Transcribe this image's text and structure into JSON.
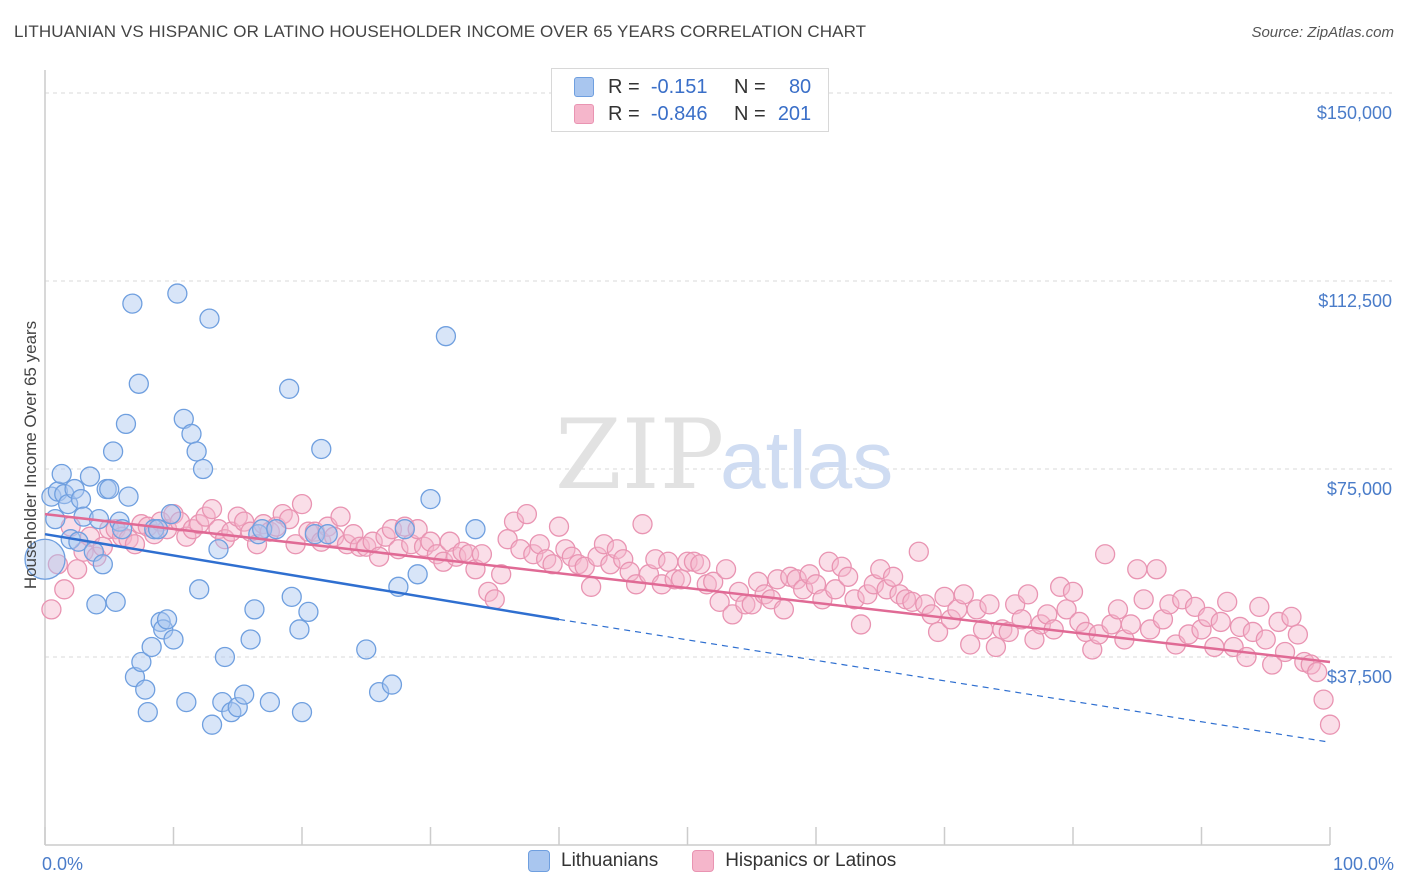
{
  "title": "LITHUANIAN VS HISPANIC OR LATINO HOUSEHOLDER INCOME OVER 65 YEARS CORRELATION CHART",
  "source": "Source: ZipAtlas.com",
  "watermark": {
    "zip": "ZIP",
    "atlas": "atlas"
  },
  "colors": {
    "blue": "#a9c6ef",
    "blue_line": "#2f6fd0",
    "pink": "#f5b6cb",
    "pink_line": "#e06a95",
    "tick_text": "#4a7cc9"
  },
  "legend": {
    "rows": [
      {
        "r_label": "R =",
        "r_value": "-0.151",
        "n_label": "N =",
        "n_value": "80"
      },
      {
        "r_label": "R =",
        "r_value": "-0.846",
        "n_label": "N =",
        "n_value": "201"
      }
    ]
  },
  "chart_data": {
    "type": "scatter",
    "ylabel": "Householder Income Over 65 years",
    "x_tick_labels": [
      "0.0%",
      "100.0%"
    ],
    "xlim": [
      0,
      100
    ],
    "ylim": [
      0,
      153000
    ],
    "y_ticks": [
      37500,
      75000,
      112500,
      150000
    ],
    "y_tick_labels": [
      "$37,500",
      "$75,000",
      "$112,500",
      "$150,000"
    ],
    "grid": "horizontal dashed",
    "legend_position": "top-center",
    "series": [
      {
        "name": "Lithuanians",
        "color": "#a9c6ef",
        "stroke": "#6f9fdf",
        "trend": {
          "x": [
            0,
            40
          ],
          "y": [
            62000,
            45000
          ],
          "dashed_to": [
            100,
            20500
          ]
        },
        "points": [
          [
            0,
            57000
          ],
          [
            0.5,
            69500
          ],
          [
            0.8,
            65000
          ],
          [
            1,
            70500
          ],
          [
            1.3,
            74000
          ],
          [
            1.5,
            70000
          ],
          [
            1.8,
            68000
          ],
          [
            2,
            61000
          ],
          [
            2.3,
            71000
          ],
          [
            2.6,
            60500
          ],
          [
            2.8,
            69000
          ],
          [
            3,
            65500
          ],
          [
            3.5,
            73500
          ],
          [
            3.8,
            58500
          ],
          [
            4,
            48000
          ],
          [
            4.2,
            65000
          ],
          [
            4.5,
            56000
          ],
          [
            4.8,
            71000
          ],
          [
            5,
            71000
          ],
          [
            5.3,
            78500
          ],
          [
            5.5,
            48500
          ],
          [
            5.8,
            64500
          ],
          [
            6,
            63000
          ],
          [
            6.3,
            84000
          ],
          [
            6.5,
            69500
          ],
          [
            6.8,
            108000
          ],
          [
            7,
            33500
          ],
          [
            7.3,
            92000
          ],
          [
            7.5,
            36500
          ],
          [
            7.8,
            31000
          ],
          [
            8,
            26500
          ],
          [
            8.3,
            39500
          ],
          [
            8.5,
            63000
          ],
          [
            8.8,
            63000
          ],
          [
            9,
            44500
          ],
          [
            9.2,
            43000
          ],
          [
            9.5,
            45000
          ],
          [
            9.8,
            66000
          ],
          [
            10,
            41000
          ],
          [
            10.3,
            110000
          ],
          [
            10.8,
            85000
          ],
          [
            11,
            28500
          ],
          [
            11.4,
            82000
          ],
          [
            11.8,
            78500
          ],
          [
            12,
            51000
          ],
          [
            12.3,
            75000
          ],
          [
            12.8,
            105000
          ],
          [
            13,
            24000
          ],
          [
            13.5,
            59000
          ],
          [
            13.8,
            28500
          ],
          [
            14,
            37500
          ],
          [
            14.5,
            26500
          ],
          [
            15,
            27500
          ],
          [
            15.5,
            30000
          ],
          [
            16,
            41000
          ],
          [
            16.3,
            47000
          ],
          [
            16.6,
            62000
          ],
          [
            16.9,
            63000
          ],
          [
            17.5,
            28500
          ],
          [
            18,
            63000
          ],
          [
            19,
            91000
          ],
          [
            19.2,
            49500
          ],
          [
            19.8,
            43000
          ],
          [
            20,
            26500
          ],
          [
            20.5,
            46500
          ],
          [
            21,
            62000
          ],
          [
            21.5,
            79000
          ],
          [
            22,
            62000
          ],
          [
            25,
            39000
          ],
          [
            26,
            30500
          ],
          [
            27,
            32000
          ],
          [
            27.5,
            51500
          ],
          [
            28,
            63000
          ],
          [
            29,
            54000
          ],
          [
            30,
            69000
          ],
          [
            31.2,
            101500
          ],
          [
            33.5,
            63000
          ]
        ]
      },
      {
        "name": "Hispanics or Latinos",
        "color": "#f5b6cb",
        "stroke": "#e994b2",
        "trend": {
          "x": [
            0,
            100
          ],
          "y": [
            66000,
            36500
          ]
        },
        "points": [
          [
            0.5,
            47000
          ],
          [
            1,
            56000
          ],
          [
            1.5,
            51000
          ],
          [
            2,
            63500
          ],
          [
            2.5,
            55000
          ],
          [
            3,
            58500
          ],
          [
            3.5,
            61500
          ],
          [
            4,
            57500
          ],
          [
            4.5,
            59500
          ],
          [
            5,
            63000
          ],
          [
            5.5,
            63000
          ],
          [
            6,
            61500
          ],
          [
            6.5,
            61000
          ],
          [
            7,
            60000
          ],
          [
            7.5,
            64000
          ],
          [
            8,
            63500
          ],
          [
            8.5,
            62000
          ],
          [
            9,
            64500
          ],
          [
            9.5,
            63000
          ],
          [
            10,
            66000
          ],
          [
            10.5,
            64500
          ],
          [
            11,
            61500
          ],
          [
            11.5,
            63000
          ],
          [
            12,
            64000
          ],
          [
            12.5,
            65500
          ],
          [
            13,
            67000
          ],
          [
            13.5,
            63000
          ],
          [
            14,
            61000
          ],
          [
            14.5,
            62500
          ],
          [
            15,
            65500
          ],
          [
            15.5,
            64500
          ],
          [
            16,
            62500
          ],
          [
            16.5,
            60000
          ],
          [
            17,
            64000
          ],
          [
            17.5,
            62500
          ],
          [
            18,
            63500
          ],
          [
            18.5,
            66000
          ],
          [
            19,
            65000
          ],
          [
            19.5,
            60000
          ],
          [
            20,
            68000
          ],
          [
            20.5,
            62500
          ],
          [
            21,
            62500
          ],
          [
            21.5,
            60500
          ],
          [
            22,
            63500
          ],
          [
            22.5,
            61500
          ],
          [
            23,
            65500
          ],
          [
            23.5,
            60000
          ],
          [
            24,
            62000
          ],
          [
            24.5,
            59500
          ],
          [
            25,
            59500
          ],
          [
            25.5,
            60500
          ],
          [
            26,
            57500
          ],
          [
            26.5,
            61500
          ],
          [
            27,
            63000
          ],
          [
            27.5,
            59000
          ],
          [
            28,
            63500
          ],
          [
            28.5,
            60000
          ],
          [
            29,
            63000
          ],
          [
            29.5,
            59500
          ],
          [
            30,
            60500
          ],
          [
            30.5,
            58000
          ],
          [
            31,
            56500
          ],
          [
            31.5,
            60500
          ],
          [
            32,
            57500
          ],
          [
            32.5,
            58500
          ],
          [
            33,
            58000
          ],
          [
            33.5,
            55000
          ],
          [
            34,
            58000
          ],
          [
            34.5,
            50500
          ],
          [
            35,
            49000
          ],
          [
            35.5,
            54000
          ],
          [
            36,
            61000
          ],
          [
            36.5,
            64500
          ],
          [
            37,
            59000
          ],
          [
            37.5,
            66000
          ],
          [
            38,
            58000
          ],
          [
            38.5,
            60000
          ],
          [
            39,
            57000
          ],
          [
            39.5,
            56000
          ],
          [
            40,
            63500
          ],
          [
            40.5,
            59000
          ],
          [
            41,
            57500
          ],
          [
            41.5,
            56000
          ],
          [
            42,
            55500
          ],
          [
            42.5,
            51500
          ],
          [
            43,
            57500
          ],
          [
            43.5,
            60000
          ],
          [
            44,
            56000
          ],
          [
            44.5,
            59000
          ],
          [
            45,
            57000
          ],
          [
            45.5,
            54500
          ],
          [
            46,
            52000
          ],
          [
            46.5,
            64000
          ],
          [
            47,
            54000
          ],
          [
            47.5,
            57000
          ],
          [
            48,
            52000
          ],
          [
            48.5,
            56500
          ],
          [
            49,
            53000
          ],
          [
            49.5,
            53000
          ],
          [
            50,
            56500
          ],
          [
            50.5,
            56500
          ],
          [
            51,
            56000
          ],
          [
            51.5,
            52000
          ],
          [
            52,
            52500
          ],
          [
            52.5,
            48500
          ],
          [
            53,
            55000
          ],
          [
            53.5,
            46000
          ],
          [
            54,
            50500
          ],
          [
            54.5,
            48000
          ],
          [
            55,
            48000
          ],
          [
            55.5,
            52500
          ],
          [
            56,
            50000
          ],
          [
            56.5,
            49000
          ],
          [
            57,
            53000
          ],
          [
            57.5,
            47000
          ],
          [
            58,
            53500
          ],
          [
            58.5,
            53000
          ],
          [
            59,
            51000
          ],
          [
            59.5,
            54000
          ],
          [
            60,
            52000
          ],
          [
            60.5,
            49000
          ],
          [
            61,
            56500
          ],
          [
            61.5,
            51000
          ],
          [
            62,
            55500
          ],
          [
            62.5,
            53500
          ],
          [
            63,
            49000
          ],
          [
            63.5,
            44000
          ],
          [
            64,
            50000
          ],
          [
            64.5,
            52000
          ],
          [
            65,
            55000
          ],
          [
            65.5,
            51000
          ],
          [
            66,
            53500
          ],
          [
            66.5,
            50000
          ],
          [
            67,
            49000
          ],
          [
            67.5,
            48500
          ],
          [
            68,
            58500
          ],
          [
            68.5,
            48000
          ],
          [
            69,
            46000
          ],
          [
            69.5,
            42500
          ],
          [
            70,
            49500
          ],
          [
            70.5,
            45000
          ],
          [
            71,
            47000
          ],
          [
            71.5,
            50000
          ],
          [
            72,
            40000
          ],
          [
            72.5,
            47000
          ],
          [
            73,
            43000
          ],
          [
            73.5,
            48000
          ],
          [
            74,
            39500
          ],
          [
            74.5,
            43000
          ],
          [
            75,
            42500
          ],
          [
            75.5,
            48000
          ],
          [
            76,
            45000
          ],
          [
            76.5,
            50000
          ],
          [
            77,
            41000
          ],
          [
            77.5,
            44000
          ],
          [
            78,
            46000
          ],
          [
            78.5,
            43000
          ],
          [
            79,
            51500
          ],
          [
            79.5,
            47000
          ],
          [
            80,
            50500
          ],
          [
            80.5,
            44500
          ],
          [
            81,
            42500
          ],
          [
            81.5,
            39000
          ],
          [
            82,
            42000
          ],
          [
            82.5,
            58000
          ],
          [
            83,
            44000
          ],
          [
            83.5,
            47000
          ],
          [
            84,
            41000
          ],
          [
            84.5,
            44000
          ],
          [
            85,
            55000
          ],
          [
            85.5,
            49000
          ],
          [
            86,
            43000
          ],
          [
            86.5,
            55000
          ],
          [
            87,
            45000
          ],
          [
            87.5,
            48000
          ],
          [
            88,
            40000
          ],
          [
            88.5,
            49000
          ],
          [
            89,
            42000
          ],
          [
            89.5,
            47500
          ],
          [
            90,
            43000
          ],
          [
            90.5,
            45500
          ],
          [
            91,
            39500
          ],
          [
            91.5,
            44500
          ],
          [
            92,
            48500
          ],
          [
            92.5,
            39500
          ],
          [
            93,
            43500
          ],
          [
            93.5,
            37500
          ],
          [
            94,
            42500
          ],
          [
            94.5,
            47500
          ],
          [
            95,
            41000
          ],
          [
            95.5,
            36000
          ],
          [
            96,
            44500
          ],
          [
            96.5,
            38500
          ],
          [
            97,
            45500
          ],
          [
            97.5,
            42000
          ],
          [
            98,
            36500
          ],
          [
            98.5,
            36000
          ],
          [
            99,
            34500
          ],
          [
            99.5,
            29000
          ],
          [
            100,
            24000
          ]
        ]
      }
    ]
  }
}
